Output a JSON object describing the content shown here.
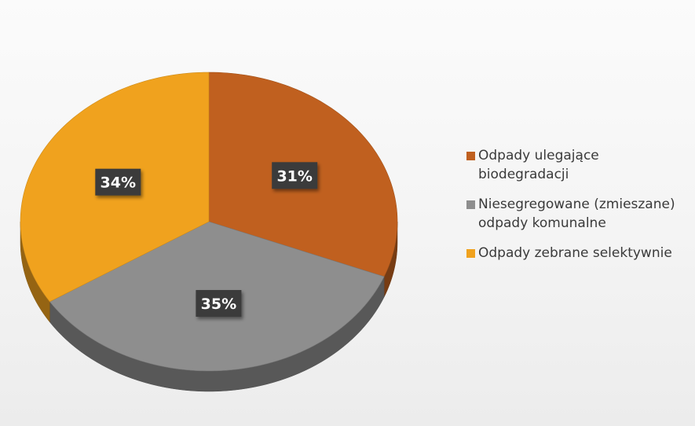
{
  "chart_data": {
    "type": "pie",
    "title": "",
    "slices": [
      {
        "label": "Odpady ulegające\nbiodegradacji",
        "value": 31,
        "display": "31%",
        "color": "#c0601f"
      },
      {
        "label": "Niesegregowane (zmieszane)\nodpady komunalne",
        "value": 35,
        "display": "35%",
        "color": "#8e8e8e"
      },
      {
        "label": "Odpady zebrane selektywnie",
        "value": 34,
        "display": "34%",
        "color": "#f0a21e"
      }
    ],
    "start_angle": "12 o'clock",
    "direction": "clockwise",
    "style": "3d",
    "legend_position": "right"
  }
}
